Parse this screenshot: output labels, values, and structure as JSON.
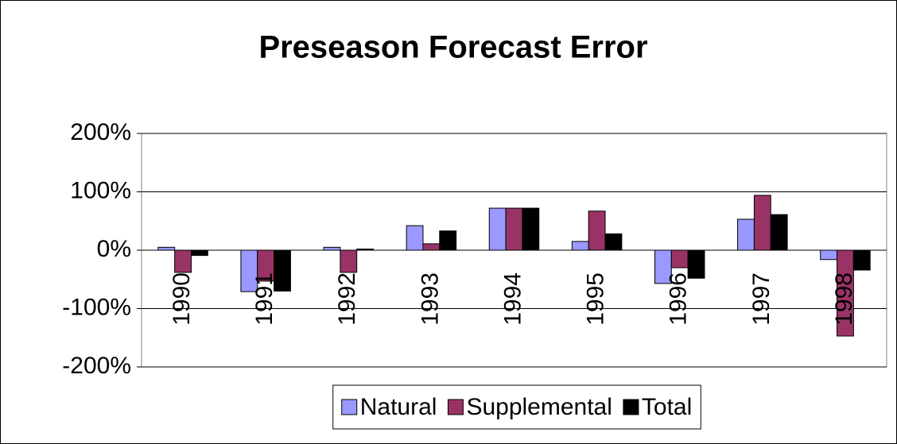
{
  "chart_data": {
    "type": "bar",
    "title": "Preseason Forecast Error",
    "categories": [
      "1990",
      "1991",
      "1992",
      "1993",
      "1994",
      "1995",
      "1996",
      "1997",
      "1998"
    ],
    "series": [
      {
        "name": "Natural",
        "color": "#9999ff",
        "values": [
          5,
          -71,
          5,
          42,
          72,
          15,
          -57,
          53,
          -16
        ]
      },
      {
        "name": "Supplemental",
        "color": "#993366",
        "values": [
          -38,
          -53,
          -38,
          11,
          72,
          67,
          -30,
          94,
          -147
        ]
      },
      {
        "name": "Total",
        "color": "#000000",
        "values": [
          -9,
          -70,
          2,
          33,
          72,
          28,
          -48,
          61,
          -34
        ]
      }
    ],
    "ylim": [
      -200,
      200
    ],
    "yticks": [
      {
        "value": -200,
        "label": "-200%"
      },
      {
        "value": -100,
        "label": "-100%"
      },
      {
        "value": 0,
        "label": "0%"
      },
      {
        "value": 100,
        "label": "100%"
      },
      {
        "value": 200,
        "label": "200%"
      }
    ],
    "grid": true,
    "legend": "bottom"
  }
}
